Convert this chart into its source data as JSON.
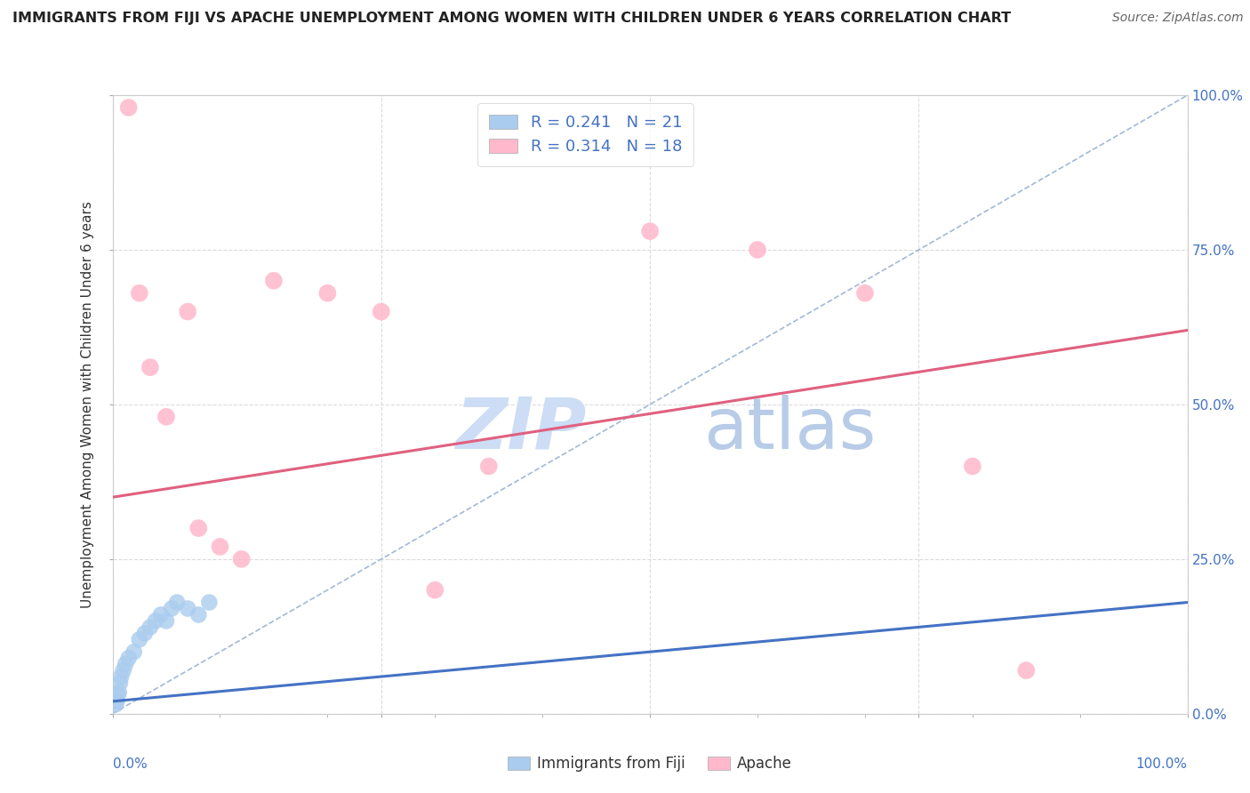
{
  "title": "IMMIGRANTS FROM FIJI VS APACHE UNEMPLOYMENT AMONG WOMEN WITH CHILDREN UNDER 6 YEARS CORRELATION CHART",
  "source": "Source: ZipAtlas.com",
  "ylabel": "Unemployment Among Women with Children Under 6 years",
  "fiji_label": "Immigrants from Fiji",
  "apache_label": "Apache",
  "fiji_R": 0.241,
  "fiji_N": 21,
  "apache_R": 0.314,
  "apache_N": 18,
  "fiji_color": "#aaccee",
  "apache_color": "#ffb8cc",
  "fiji_line_color": "#4472c4",
  "apache_line_color": "#e06080",
  "diagonal_color": "#9ab0d0",
  "legend_color": "#4472c4",
  "background_color": "#ffffff",
  "grid_color": "#d8d8d8",
  "watermark_zip_color": "#ccddf5",
  "watermark_atlas_color": "#b8cce8",
  "xlim": [
    0,
    100
  ],
  "ylim": [
    0,
    100
  ],
  "fiji_x": [
    0.3,
    0.4,
    0.5,
    0.6,
    0.7,
    0.8,
    1.0,
    1.2,
    1.5,
    2.0,
    2.5,
    3.0,
    3.5,
    4.0,
    4.5,
    5.0,
    5.5,
    6.0,
    7.0,
    8.0,
    9.0
  ],
  "fiji_y": [
    1.5,
    2.0,
    3.0,
    3.5,
    5.0,
    6.0,
    7.0,
    8.0,
    9.0,
    10.0,
    12.0,
    13.0,
    14.0,
    15.0,
    16.0,
    15.0,
    17.0,
    18.0,
    17.0,
    16.0,
    18.0
  ],
  "apache_x": [
    1.5,
    2.5,
    3.5,
    5.0,
    7.0,
    8.0,
    10.0,
    12.0,
    15.0,
    20.0,
    25.0,
    30.0,
    35.0,
    50.0,
    60.0,
    70.0,
    80.0,
    85.0
  ],
  "apache_y": [
    98.0,
    68.0,
    56.0,
    48.0,
    65.0,
    30.0,
    27.0,
    25.0,
    70.0,
    68.0,
    65.0,
    20.0,
    40.0,
    78.0,
    75.0,
    68.0,
    40.0,
    7.0
  ],
  "fiji_trend": [
    0,
    100,
    2,
    18
  ],
  "apache_trend": [
    0,
    100,
    35,
    62
  ],
  "x_tick_labels_left": "0.0%",
  "x_tick_labels_right": "100.0%",
  "y_right_labels": [
    0,
    25,
    50,
    75,
    100
  ],
  "y_right_label_strs": [
    "0.0%",
    "25.0%",
    "50.0%",
    "75.0%",
    "100.0%"
  ]
}
